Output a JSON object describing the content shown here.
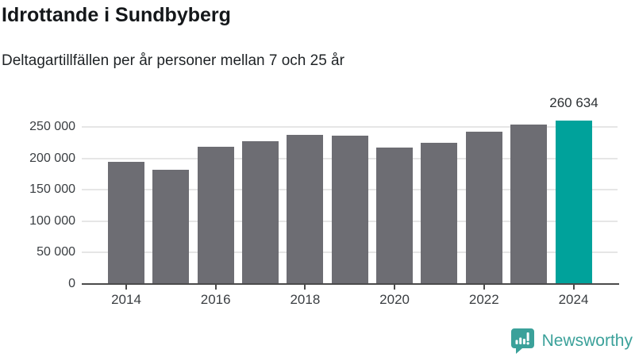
{
  "chart_data": {
    "type": "bar",
    "title": "Idrottande i Sundbyberg",
    "subtitle": "Deltagartillfällen per år personer mellan 7 och 25 år",
    "categories": [
      "2014",
      "2015",
      "2016",
      "2017",
      "2018",
      "2019",
      "2020",
      "2021",
      "2022",
      "2023",
      "2024"
    ],
    "values": [
      194000,
      182000,
      219000,
      227000,
      237000,
      236000,
      217000,
      225000,
      242000,
      254000,
      260634
    ],
    "highlight_index": 10,
    "annotation": {
      "index": 10,
      "text": "260 634"
    },
    "xlabel": "",
    "ylabel": "",
    "x_tick_labels": [
      "2014",
      "2016",
      "2018",
      "2020",
      "2022",
      "2024"
    ],
    "y_ticks": [
      0,
      50000,
      100000,
      150000,
      200000,
      250000
    ],
    "y_tick_labels": [
      "0",
      "50 000",
      "100 000",
      "150 000",
      "200 000",
      "250 000"
    ],
    "ylim": [
      0,
      263000
    ],
    "grid": true,
    "legend": false,
    "bar_color": "#6d6d73",
    "highlight_color": "#00a29b",
    "gridline_color": "#e6e6e6",
    "axis_color": "#4b4b4b"
  },
  "branding": {
    "logo_text": "Newsworthy",
    "logo_color": "#3ba19a",
    "logo_icon": "speech-bubble-bar-chart-icon"
  }
}
